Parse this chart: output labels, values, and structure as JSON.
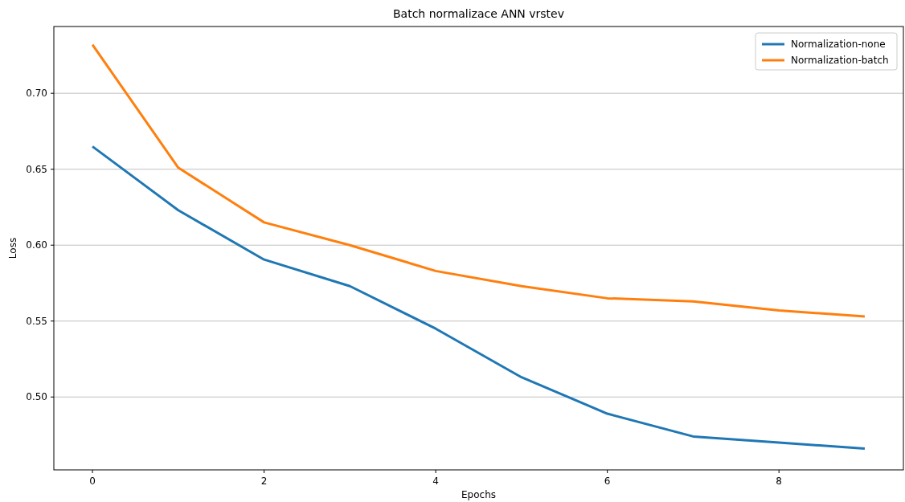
{
  "chart_data": {
    "type": "line",
    "title": "Batch normalizace ANN vrstev",
    "xlabel": "Epochs",
    "ylabel": "Loss",
    "x": [
      0,
      1,
      2,
      3,
      4,
      5,
      6,
      7,
      8,
      9
    ],
    "series": [
      {
        "name": "Normalization-none",
        "color": "#1f77b4",
        "values": [
          0.665,
          0.623,
          0.5905,
          0.573,
          0.545,
          0.513,
          0.489,
          0.474,
          0.47,
          0.466
        ]
      },
      {
        "name": "Normalization-batch",
        "color": "#ff7f0e",
        "values": [
          0.732,
          0.651,
          0.615,
          0.6,
          0.583,
          0.573,
          0.565,
          0.563,
          0.557,
          0.553
        ]
      }
    ],
    "xlim": [
      -0.45,
      9.45
    ],
    "ylim": [
      0.452,
      0.744
    ],
    "xticks": [
      0,
      2,
      4,
      6,
      8
    ],
    "yticks": [
      {
        "value": 0.5,
        "label": "0.50"
      },
      {
        "value": 0.55,
        "label": "0.55"
      },
      {
        "value": 0.6,
        "label": "0.60"
      },
      {
        "value": 0.65,
        "label": "0.65"
      },
      {
        "value": 0.7,
        "label": "0.70"
      }
    ],
    "grid": "y",
    "legend": "top right",
    "marker": "none",
    "line_style": "solid"
  }
}
